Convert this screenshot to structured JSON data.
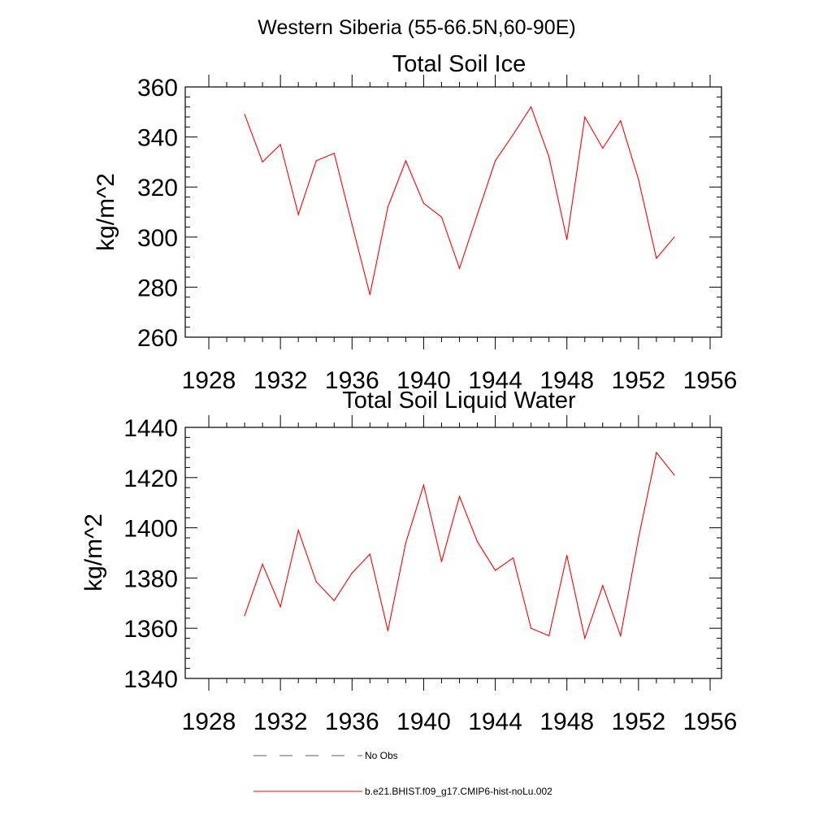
{
  "figure": {
    "suptitle": "Western Siberia (55-66.5N,60-90E)"
  },
  "chart_data": [
    {
      "type": "line",
      "title": "Total Soil Ice",
      "xlabel": "",
      "ylabel": "kg/m^2",
      "xlim": [
        1928,
        1956
      ],
      "ylim": [
        260,
        360
      ],
      "xticks": [
        1928,
        1932,
        1936,
        1940,
        1944,
        1948,
        1952,
        1956
      ],
      "yticks": [
        260,
        280,
        300,
        320,
        340,
        360
      ],
      "grid": false,
      "x": [
        1930,
        1931,
        1932,
        1933,
        1934,
        1935,
        1936,
        1937,
        1938,
        1939,
        1940,
        1941,
        1942,
        1943,
        1944,
        1945,
        1946,
        1947,
        1948,
        1949,
        1950,
        1951,
        1952,
        1953,
        1954
      ],
      "series": [
        {
          "name": "b.e21.BHIST.f09_g17.CMIP6-hist-noLu.002",
          "color": "#ff0000",
          "values": [
            349,
            330,
            337,
            309,
            330.5,
            333.5,
            305,
            277,
            312,
            330.5,
            313.5,
            308,
            287.5,
            309,
            330.5,
            341,
            352,
            332,
            299,
            348,
            335.5,
            346.5,
            323,
            291.5,
            300
          ]
        }
      ]
    },
    {
      "type": "line",
      "title": "Total Soil Liquid Water",
      "xlabel": "",
      "ylabel": "kg/m^2",
      "xlim": [
        1928,
        1956
      ],
      "ylim": [
        1340,
        1440
      ],
      "xticks": [
        1928,
        1932,
        1936,
        1940,
        1944,
        1948,
        1952,
        1956
      ],
      "yticks": [
        1340,
        1360,
        1380,
        1400,
        1420,
        1440
      ],
      "grid": false,
      "x": [
        1930,
        1931,
        1932,
        1933,
        1934,
        1935,
        1936,
        1937,
        1938,
        1939,
        1940,
        1941,
        1942,
        1943,
        1944,
        1945,
        1946,
        1947,
        1948,
        1949,
        1950,
        1951,
        1952,
        1953,
        1954
      ],
      "series": [
        {
          "name": "b.e21.BHIST.f09_g17.CMIP6-hist-noLu.002",
          "color": "#ff0000",
          "values": [
            1365,
            1385.5,
            1368.5,
            1399,
            1378.5,
            1371,
            1382,
            1389.5,
            1359,
            1394,
            1417,
            1386.5,
            1412.5,
            1394.5,
            1383,
            1388,
            1360,
            1357,
            1389,
            1356,
            1377,
            1357,
            1396,
            1430,
            1421
          ]
        }
      ]
    }
  ],
  "legend": {
    "placement": "bottom",
    "items": [
      {
        "label": "No Obs",
        "style": "dashed",
        "color": "#5a5a78"
      },
      {
        "label": "b.e21.BHIST.f09_g17.CMIP6-hist-noLu.002",
        "style": "solid",
        "color": "#ff0000"
      }
    ]
  }
}
